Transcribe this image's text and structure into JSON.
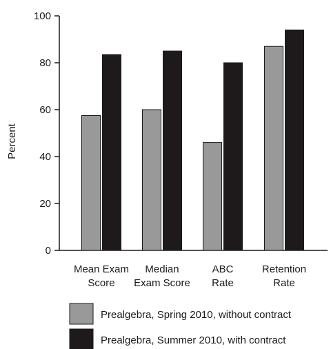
{
  "chart_data": {
    "type": "bar",
    "ylabel": "Percent",
    "ylim": [
      0,
      100
    ],
    "yticks": [
      "0",
      "20",
      "40",
      "60",
      "80",
      "100"
    ],
    "categories": [
      [
        "Mean Exam",
        "Score"
      ],
      [
        "Median",
        "Exam Score"
      ],
      [
        "ABC",
        "Rate"
      ],
      [
        "Retention",
        "Rate"
      ]
    ],
    "series": [
      {
        "name": "Prealgebra, Spring 2010, without contract",
        "color": "#999999",
        "values": [
          57.5,
          60,
          46,
          87
        ]
      },
      {
        "name": "Prealgebra, Summer 2010, with contract",
        "color": "#1e1a1b",
        "values": [
          83.5,
          85,
          80,
          94
        ]
      }
    ],
    "grid": false,
    "legend_position": "bottom"
  }
}
